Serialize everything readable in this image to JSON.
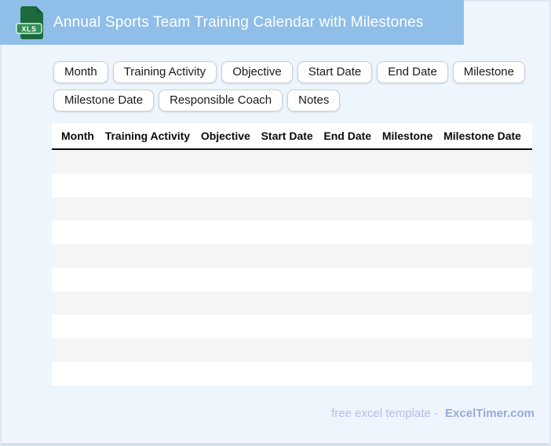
{
  "header": {
    "title": "Annual Sports Team Training Calendar with Milestones",
    "file_icon_label": "XLS",
    "bar_color": "#8FBEE8",
    "icon_green": "#1B6B3D",
    "icon_badge_green": "#2F8F55"
  },
  "field_chips": {
    "row1": [
      "Month",
      "Training Activity",
      "Objective",
      "Start Date",
      "End Date",
      "Milestone"
    ],
    "row2": [
      "Milestone Date",
      "Responsible Coach",
      "Notes"
    ]
  },
  "table": {
    "columns": [
      "Month",
      "Training Activity",
      "Objective",
      "Start Date",
      "End Date",
      "Milestone",
      "Milestone Date"
    ],
    "empty_row_count": 10,
    "stripe_color": "#F5F5F5"
  },
  "footer": {
    "tagline": "free excel template -",
    "brand": "ExcelTimer.com",
    "tagline_color": "#B2BFE8",
    "brand_color": "#98A9DC"
  },
  "page": {
    "background": "#EFF5FD"
  }
}
